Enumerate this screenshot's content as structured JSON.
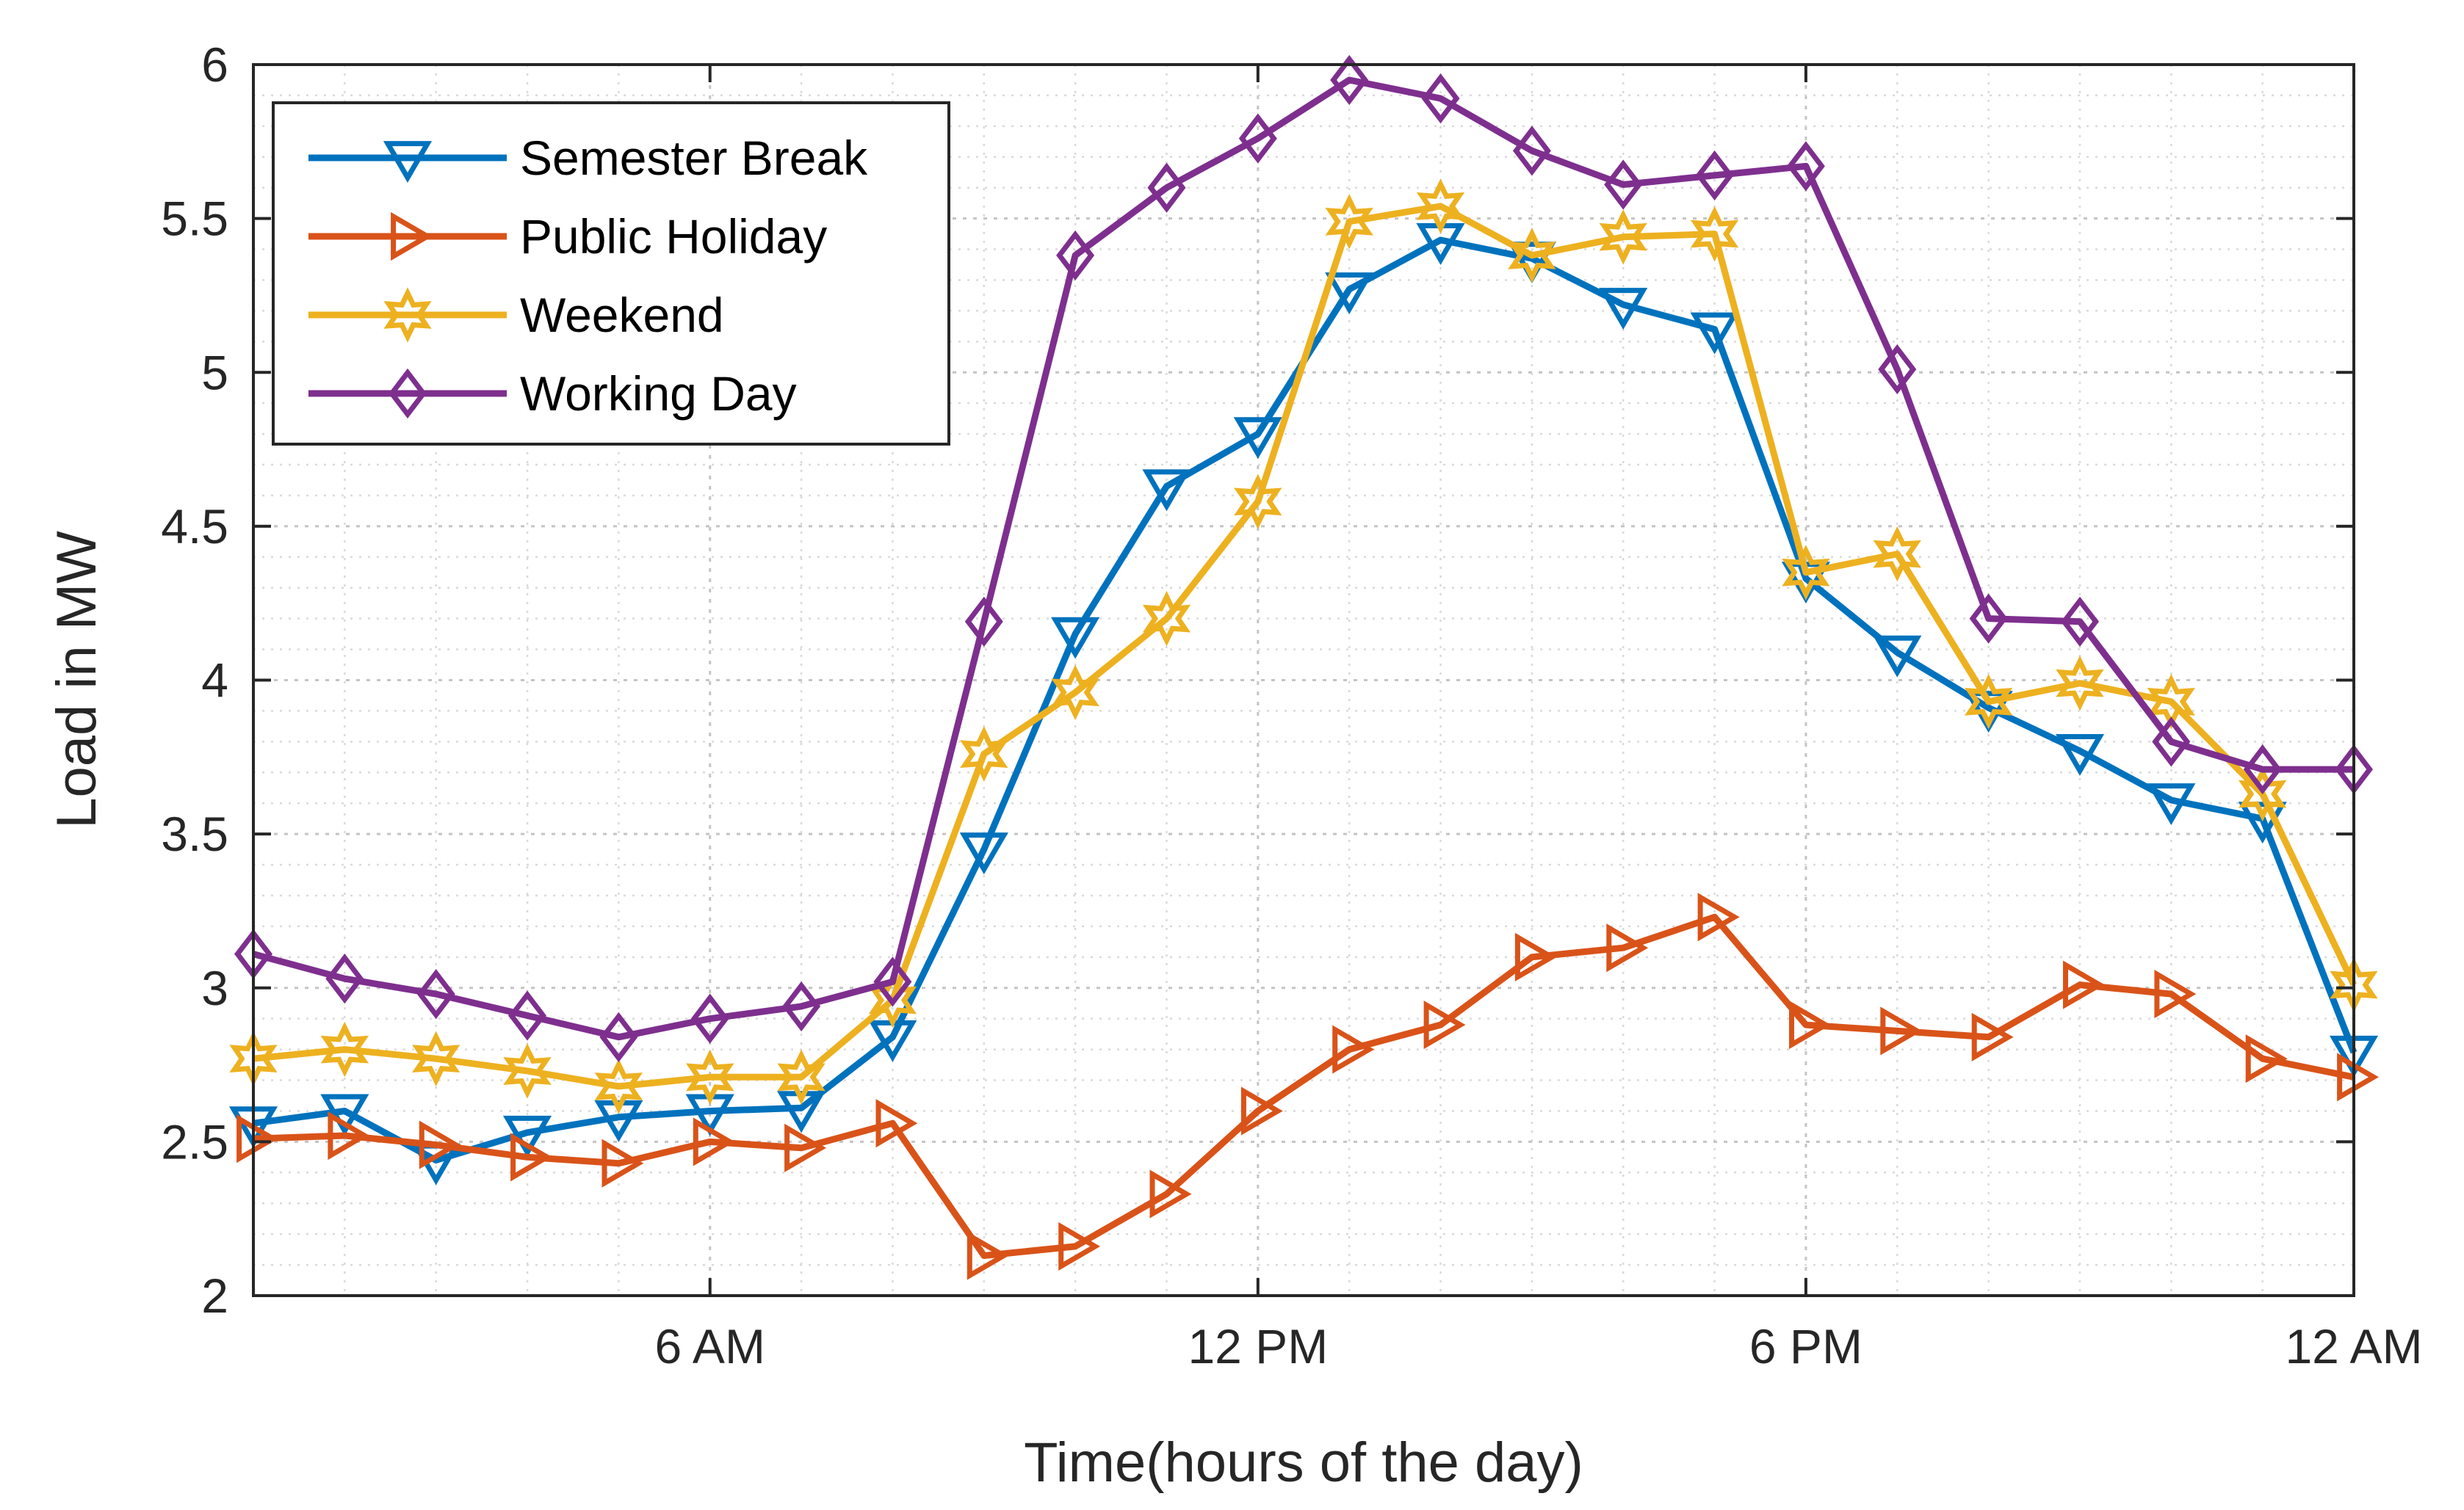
{
  "chart_data": {
    "type": "line",
    "title": "",
    "xlabel": "Time(hours of the day)",
    "ylabel": "Load in MW",
    "xlim": [
      1,
      24
    ],
    "ylim": [
      2,
      6
    ],
    "grid": true,
    "minor_grid": true,
    "legend_position": "top-left",
    "x_ticks": [
      {
        "value": 6,
        "label": "6 AM"
      },
      {
        "value": 12,
        "label": "12 PM"
      },
      {
        "value": 18,
        "label": "6 PM"
      },
      {
        "value": 24,
        "label": "12 AM"
      }
    ],
    "y_ticks": [
      {
        "value": 2,
        "label": "2"
      },
      {
        "value": 2.5,
        "label": "2.5"
      },
      {
        "value": 3,
        "label": "3"
      },
      {
        "value": 3.5,
        "label": "3.5"
      },
      {
        "value": 4,
        "label": "4"
      },
      {
        "value": 4.5,
        "label": "4.5"
      },
      {
        "value": 5,
        "label": "5"
      },
      {
        "value": 5.5,
        "label": "5.5"
      },
      {
        "value": 6,
        "label": "6"
      }
    ],
    "x": [
      1,
      2,
      3,
      4,
      5,
      6,
      7,
      8,
      9,
      10,
      11,
      12,
      13,
      14,
      15,
      16,
      17,
      18,
      19,
      20,
      21,
      22,
      23,
      24
    ],
    "series": [
      {
        "name": "Semester Break",
        "color": "#0072BD",
        "marker": "triangle-down",
        "values": [
          2.56,
          2.6,
          2.44,
          2.53,
          2.58,
          2.6,
          2.61,
          2.84,
          3.45,
          4.15,
          4.63,
          4.8,
          5.27,
          5.43,
          5.37,
          5.22,
          5.14,
          4.33,
          4.09,
          3.91,
          3.77,
          3.61,
          3.55,
          2.79
        ]
      },
      {
        "name": "Public Holiday",
        "color": "#D95319",
        "marker": "triangle-right",
        "values": [
          2.51,
          2.52,
          2.49,
          2.45,
          2.43,
          2.5,
          2.48,
          2.56,
          2.13,
          2.16,
          2.33,
          2.6,
          2.8,
          2.88,
          3.1,
          3.13,
          3.23,
          2.88,
          2.86,
          2.84,
          3.01,
          2.98,
          2.77,
          2.71
        ]
      },
      {
        "name": "Weekend",
        "color": "#EDB120",
        "marker": "hexagram",
        "values": [
          2.77,
          2.8,
          2.77,
          2.73,
          2.68,
          2.71,
          2.71,
          2.96,
          3.76,
          3.96,
          4.2,
          4.58,
          5.49,
          5.54,
          5.38,
          5.44,
          5.45,
          4.35,
          4.41,
          3.93,
          3.99,
          3.93,
          3.63,
          3.01
        ]
      },
      {
        "name": "Working Day",
        "color": "#7E2F8E",
        "marker": "diamond",
        "values": [
          3.11,
          3.03,
          2.98,
          2.91,
          2.84,
          2.9,
          2.94,
          3.02,
          4.19,
          5.38,
          5.6,
          5.76,
          5.95,
          5.89,
          5.72,
          5.61,
          5.64,
          5.67,
          5.01,
          4.2,
          4.19,
          3.8,
          3.71,
          3.71
        ]
      }
    ]
  }
}
